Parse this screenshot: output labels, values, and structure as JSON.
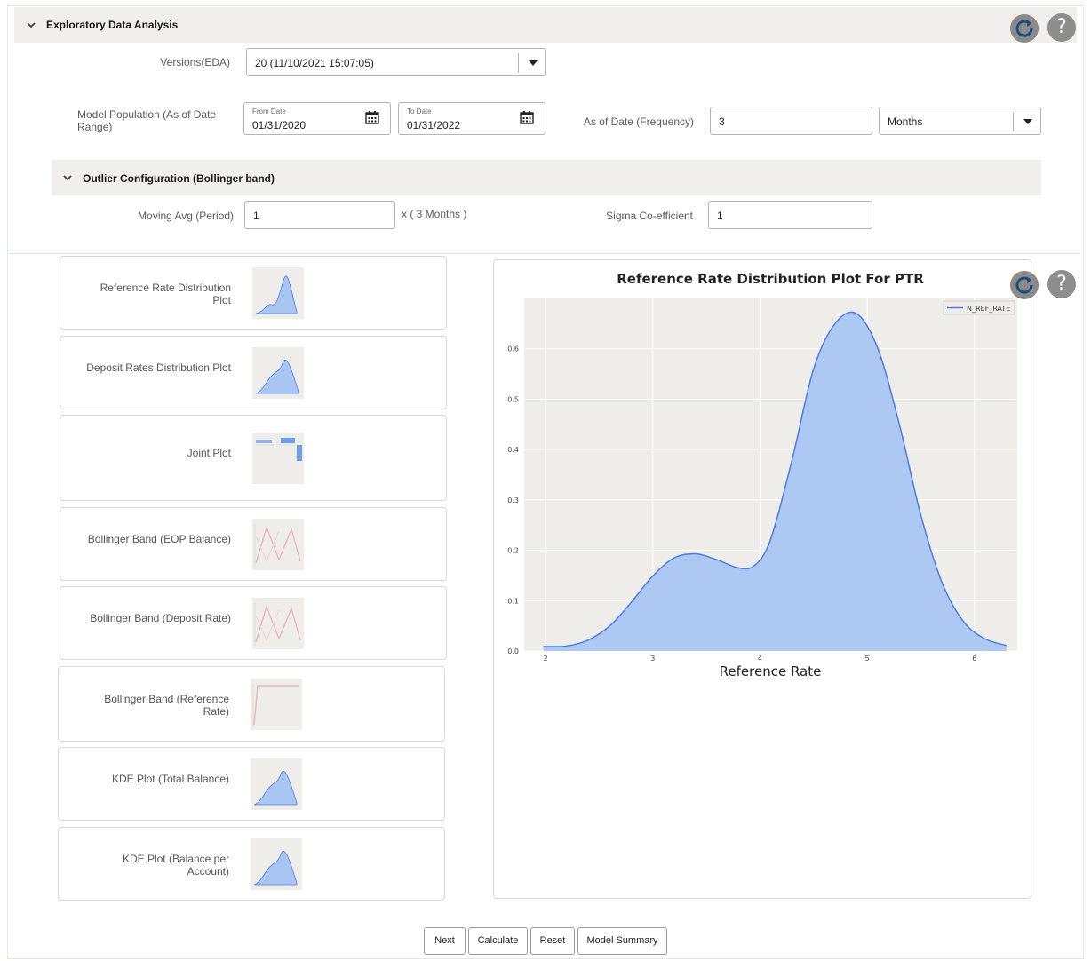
{
  "section": {
    "title": "Exploratory Data Analysis"
  },
  "versions": {
    "label": "Versions(EDA)",
    "value": "20 (11/10/2021 15:07:05)"
  },
  "model_population": {
    "label": "Model Population (As of Date Range)",
    "from": {
      "label": "From Date",
      "value": "01/31/2020"
    },
    "to": {
      "label": "To Date",
      "value": "01/31/2022"
    }
  },
  "frequency": {
    "label": "As of Date (Frequency)",
    "value": "3",
    "unit": "Months"
  },
  "outlier": {
    "title": "Outlier Configuration (Bollinger band)",
    "moving_avg": {
      "label": "Moving Avg (Period)",
      "value": "1",
      "suffix": "x ( 3  Months )"
    },
    "sigma": {
      "label": "Sigma Co-efficient",
      "value": "1"
    }
  },
  "plots": [
    {
      "label": "Reference Rate Distribution Plot",
      "kind": "kde-right"
    },
    {
      "label": "Deposit Rates Distribution Plot",
      "kind": "kde-mid"
    },
    {
      "label": "Joint Plot",
      "kind": "joint"
    },
    {
      "label": "Bollinger Band (EOP Balance)",
      "kind": "bollinger"
    },
    {
      "label": "Bollinger Band (Deposit Rate)",
      "kind": "bollinger"
    },
    {
      "label": "Bollinger Band (Reference Rate)",
      "kind": "flat"
    },
    {
      "label": "KDE Plot (Total Balance)",
      "kind": "kde-mid"
    },
    {
      "label": "KDE Plot (Balance per Account)",
      "kind": "kde-mid"
    }
  ],
  "chart_data": {
    "type": "area",
    "title": "Reference Rate Distribution Plot For PTR",
    "xlabel": "Reference Rate",
    "ylabel": "",
    "legend": {
      "placement": "top-right",
      "entries": [
        "N_REF_RATE"
      ]
    },
    "xlim": [
      1.8,
      6.4
    ],
    "ylim": [
      0,
      0.7
    ],
    "xticks": [
      "2",
      "3",
      "4",
      "5",
      "6"
    ],
    "yticks": [
      "0.0",
      "0.1",
      "0.2",
      "0.3",
      "0.4",
      "0.5",
      "0.6"
    ],
    "grid": true,
    "color": "#4a7ee6",
    "fill": "#a9c6f2",
    "series": [
      {
        "name": "N_REF_RATE",
        "x": [
          1.98,
          2.2,
          2.4,
          2.6,
          2.8,
          3.0,
          3.2,
          3.4,
          3.6,
          3.8,
          3.95,
          4.1,
          4.3,
          4.5,
          4.7,
          4.9,
          5.1,
          5.3,
          5.5,
          5.7,
          5.9,
          6.1,
          6.3
        ],
        "y": [
          0.009,
          0.01,
          0.022,
          0.05,
          0.097,
          0.149,
          0.185,
          0.193,
          0.181,
          0.165,
          0.17,
          0.222,
          0.38,
          0.56,
          0.65,
          0.67,
          0.6,
          0.45,
          0.27,
          0.135,
          0.058,
          0.024,
          0.011
        ]
      }
    ]
  },
  "actions": {
    "next": "Next",
    "calculate": "Calculate",
    "reset": "Reset",
    "model_summary": "Model Summary"
  },
  "help_glyph": "?",
  "colors": {
    "accent": "#4a7ee6",
    "panel": "#f1efed",
    "chart_bg": "#efedea"
  },
  "icons": {
    "refresh": "refresh-icon",
    "help": "help-icon",
    "calendar": "calendar-icon"
  }
}
